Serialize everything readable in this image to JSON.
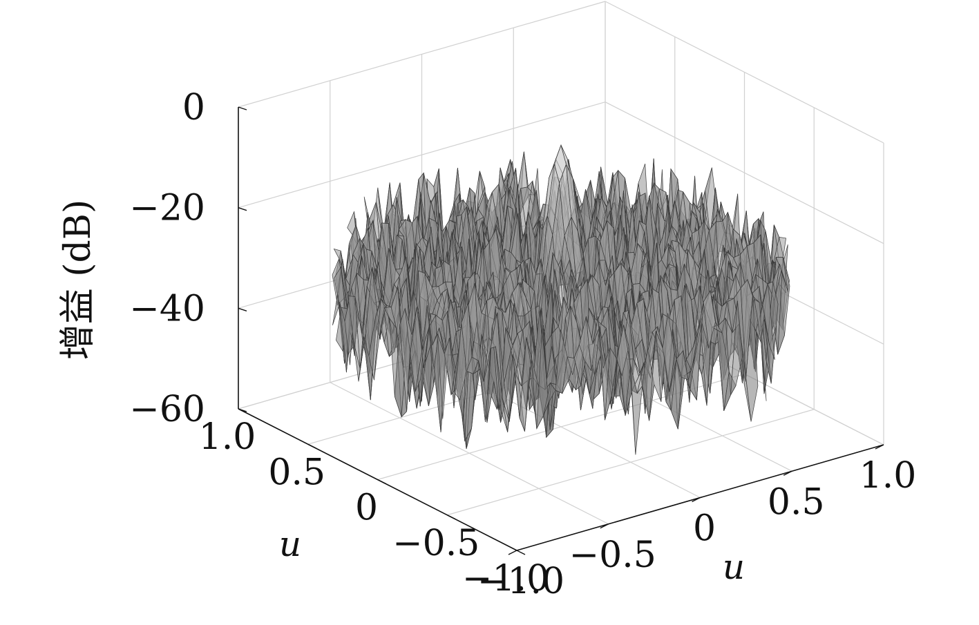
{
  "chart_data": {
    "type": "surface",
    "title": "",
    "xlabel": "u",
    "ylabel": "u",
    "zlabel": "增益 (dB)",
    "xlim": [
      -1.0,
      1.0
    ],
    "ylim": [
      -1.0,
      1.0
    ],
    "zlim": [
      -60,
      0
    ],
    "x_ticks": [
      "-1.0",
      "-0.5",
      "0",
      "0.5",
      "1.0"
    ],
    "y_ticks": [
      "1.0",
      "0.5",
      "0",
      "-0.5",
      "-1.0"
    ],
    "z_ticks": [
      "0",
      "-20",
      "-40",
      "-60"
    ],
    "grid": true,
    "colormap": "gray",
    "region": "unit disk u²+v²≤1",
    "main_lobe": {
      "u": 0,
      "v": 0,
      "peak_db": -4
    },
    "sidelobe_level_db": [
      -45,
      -20
    ],
    "colors": {
      "axis": "#111111",
      "grid": "#d0d0d0",
      "mesh": "#3c3c3c"
    }
  }
}
